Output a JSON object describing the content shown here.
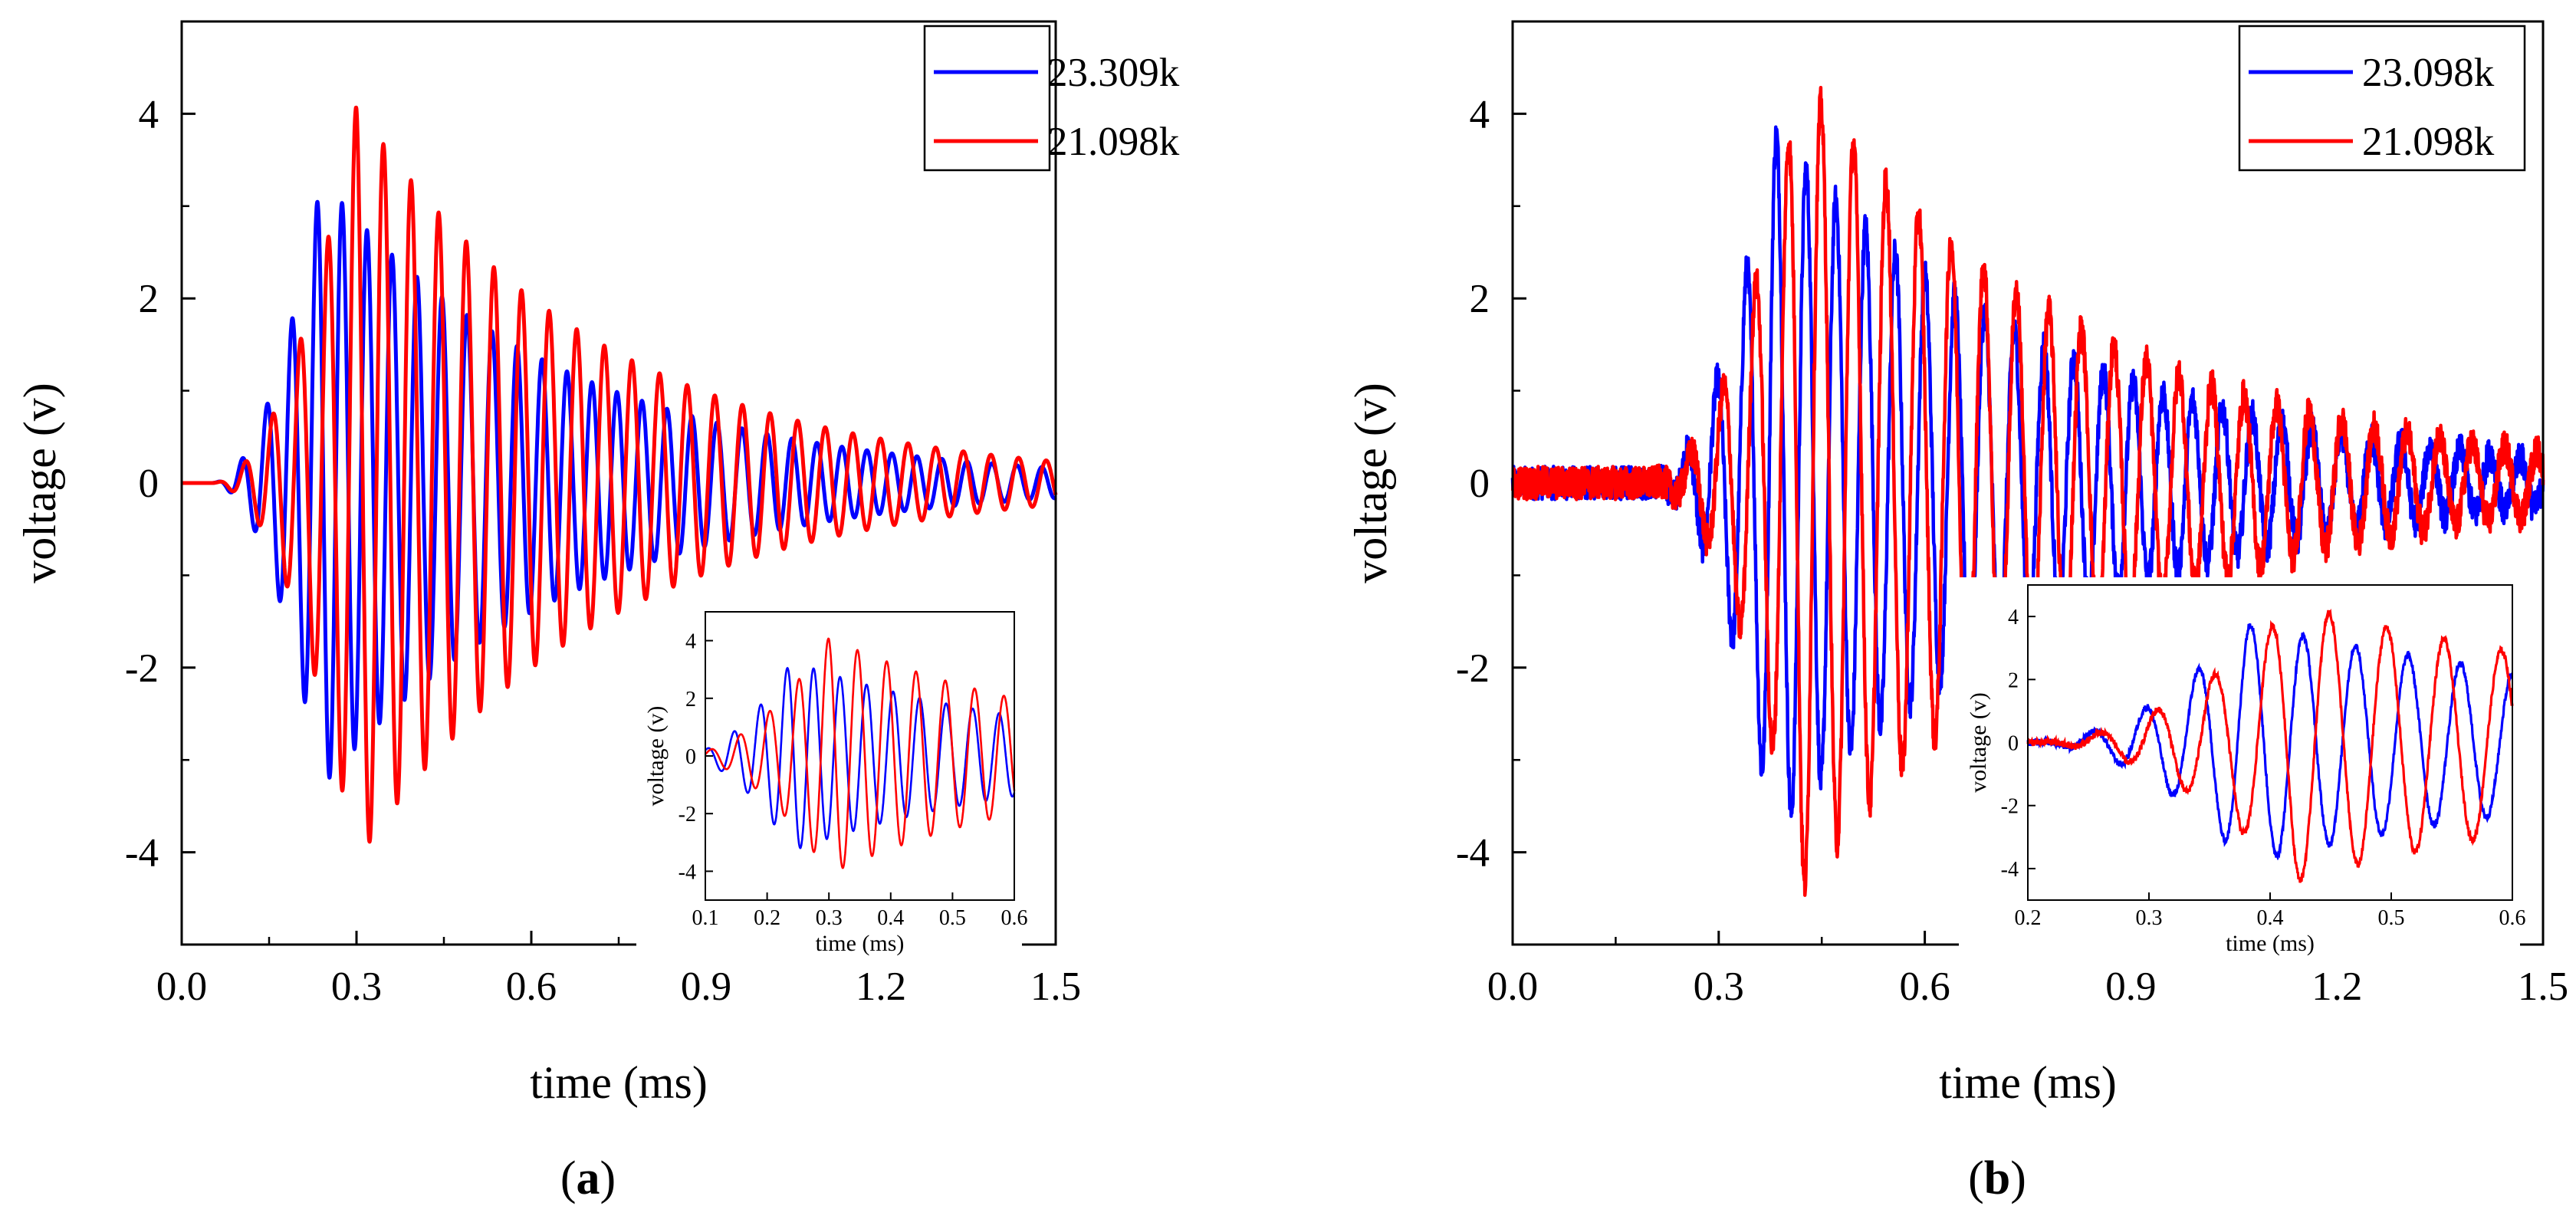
{
  "charts": [
    {
      "id": "a",
      "panel_label": {
        "open": "(",
        "letter": "a",
        "close": ")"
      },
      "legend": [
        "23.309k",
        "21.098k"
      ],
      "chart_data": {
        "type": "line",
        "xlabel": "time (ms)",
        "ylabel": "voltage (v)",
        "xlim": [
          0,
          1.5
        ],
        "ylim": [
          -5,
          5
        ],
        "xticks": [
          "0.0",
          "0.3",
          "0.6",
          "0.9",
          "1.2",
          "1.5"
        ],
        "yticks": [
          "-4",
          "-2",
          "0",
          "2",
          "4"
        ],
        "legend_position": "top-right",
        "series": [
          {
            "name": "23.309k",
            "color": "#0000ff",
            "freq_khz": 23.309,
            "onset_ms": 0.05,
            "peak_time_ms": 0.24,
            "peak": 3.3,
            "noise": 0
          },
          {
            "name": "21.098k",
            "color": "#ff0000",
            "freq_khz": 21.098,
            "onset_ms": 0.05,
            "peak_time_ms": 0.3,
            "peak": 4.1,
            "noise": 0
          }
        ],
        "inset": {
          "xlabel": "time (ms)",
          "ylabel": "voltage (v)",
          "xlim": [
            0.1,
            0.6
          ],
          "ylim": [
            -5,
            5
          ],
          "xticks": [
            "0.1",
            "0.2",
            "0.3",
            "0.4",
            "0.5",
            "0.6"
          ],
          "yticks": [
            "-4",
            "-2",
            "0",
            "2",
            "4"
          ]
        }
      }
    },
    {
      "id": "b",
      "panel_label": {
        "open": "(",
        "letter": "b",
        "close": ")"
      },
      "legend": [
        "23.098k",
        "21.098k"
      ],
      "chart_data": {
        "type": "line",
        "xlabel": "time (ms)",
        "ylabel": "voltage (v)",
        "xlim": [
          0,
          1.5
        ],
        "ylim": [
          -5,
          5
        ],
        "xticks": [
          "0.0",
          "0.3",
          "0.6",
          "0.9",
          "1.2",
          "1.5"
        ],
        "yticks": [
          "-4",
          "-2",
          "0",
          "2",
          "4"
        ],
        "legend_position": "top-right",
        "series": [
          {
            "name": "23.098k",
            "color": "#0000ff",
            "freq_khz": 23.098,
            "onset_ms": 0.2,
            "peak_time_ms": 0.38,
            "peak": 3.8,
            "noise": 0.18
          },
          {
            "name": "21.098k",
            "color": "#ff0000",
            "freq_khz": 21.098,
            "onset_ms": 0.2,
            "peak_time_ms": 0.42,
            "peak": 4.4,
            "noise": 0.18
          }
        ],
        "inset": {
          "xlabel": "time (ms)",
          "ylabel": "voltage (v)",
          "xlim": [
            0.2,
            0.6
          ],
          "ylim": [
            -5,
            5
          ],
          "xticks": [
            "0.2",
            "0.3",
            "0.4",
            "0.5",
            "0.6"
          ],
          "yticks": [
            "-4",
            "-2",
            "0",
            "2",
            "4"
          ]
        }
      }
    }
  ]
}
